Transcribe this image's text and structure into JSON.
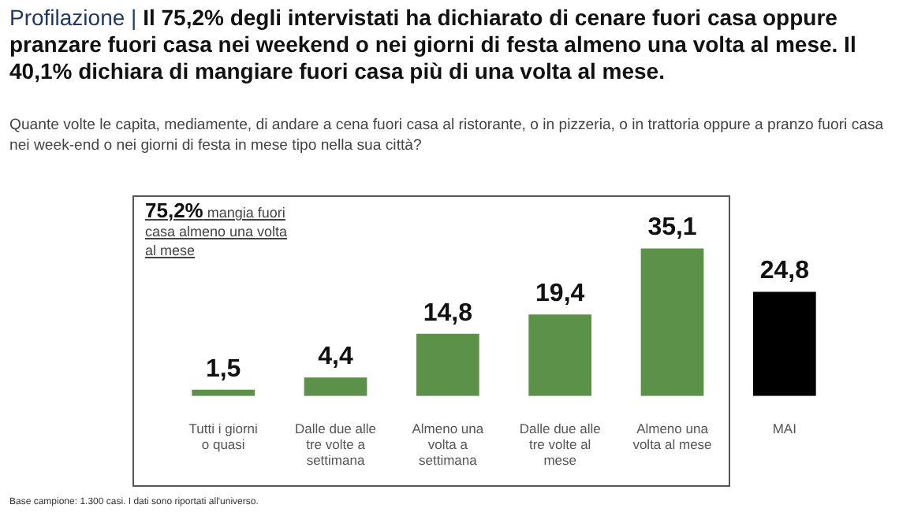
{
  "chart_data": {
    "type": "bar",
    "title": "Profilazione | Il 75,2% degli intervistati ha dichiarato di cenare fuori casa oppure pranzare fuori casa nei weekend o nei giorni di festa almeno una volta al mese. Il 40,1% dichiara di mangiare fuori casa più di una volta al mese.",
    "subtitle": "Quante volte le capita, mediamente, di andare a cena fuori casa al ristorante, o in pizzeria, o in trattoria oppure a pranzo fuori casa nei week-end o nei giorni di festa in mese tipo nella sua città?",
    "categories": [
      "Tutti i giorni o quasi",
      "Dalle due alle tre volte a settimana",
      "Almeno una volta a settimana",
      "Dalle due alle tre volte al mese",
      "Almeno una volta al mese",
      "MAI"
    ],
    "values": [
      1.5,
      4.4,
      14.8,
      19.4,
      35.1,
      24.8
    ],
    "colors": [
      "#5b9148",
      "#5b9148",
      "#5b9148",
      "#5b9148",
      "#5b9148",
      "#000000"
    ],
    "value_labels": [
      "1,5",
      "4,4",
      "14,8",
      "19,4",
      "35,1",
      "24,8"
    ],
    "annotations": [
      "75,2% mangia fuori casa almeno una volta al mese",
      "Base campione: 1.300 casi. I dati sono riportati all'universo."
    ]
  }
}
